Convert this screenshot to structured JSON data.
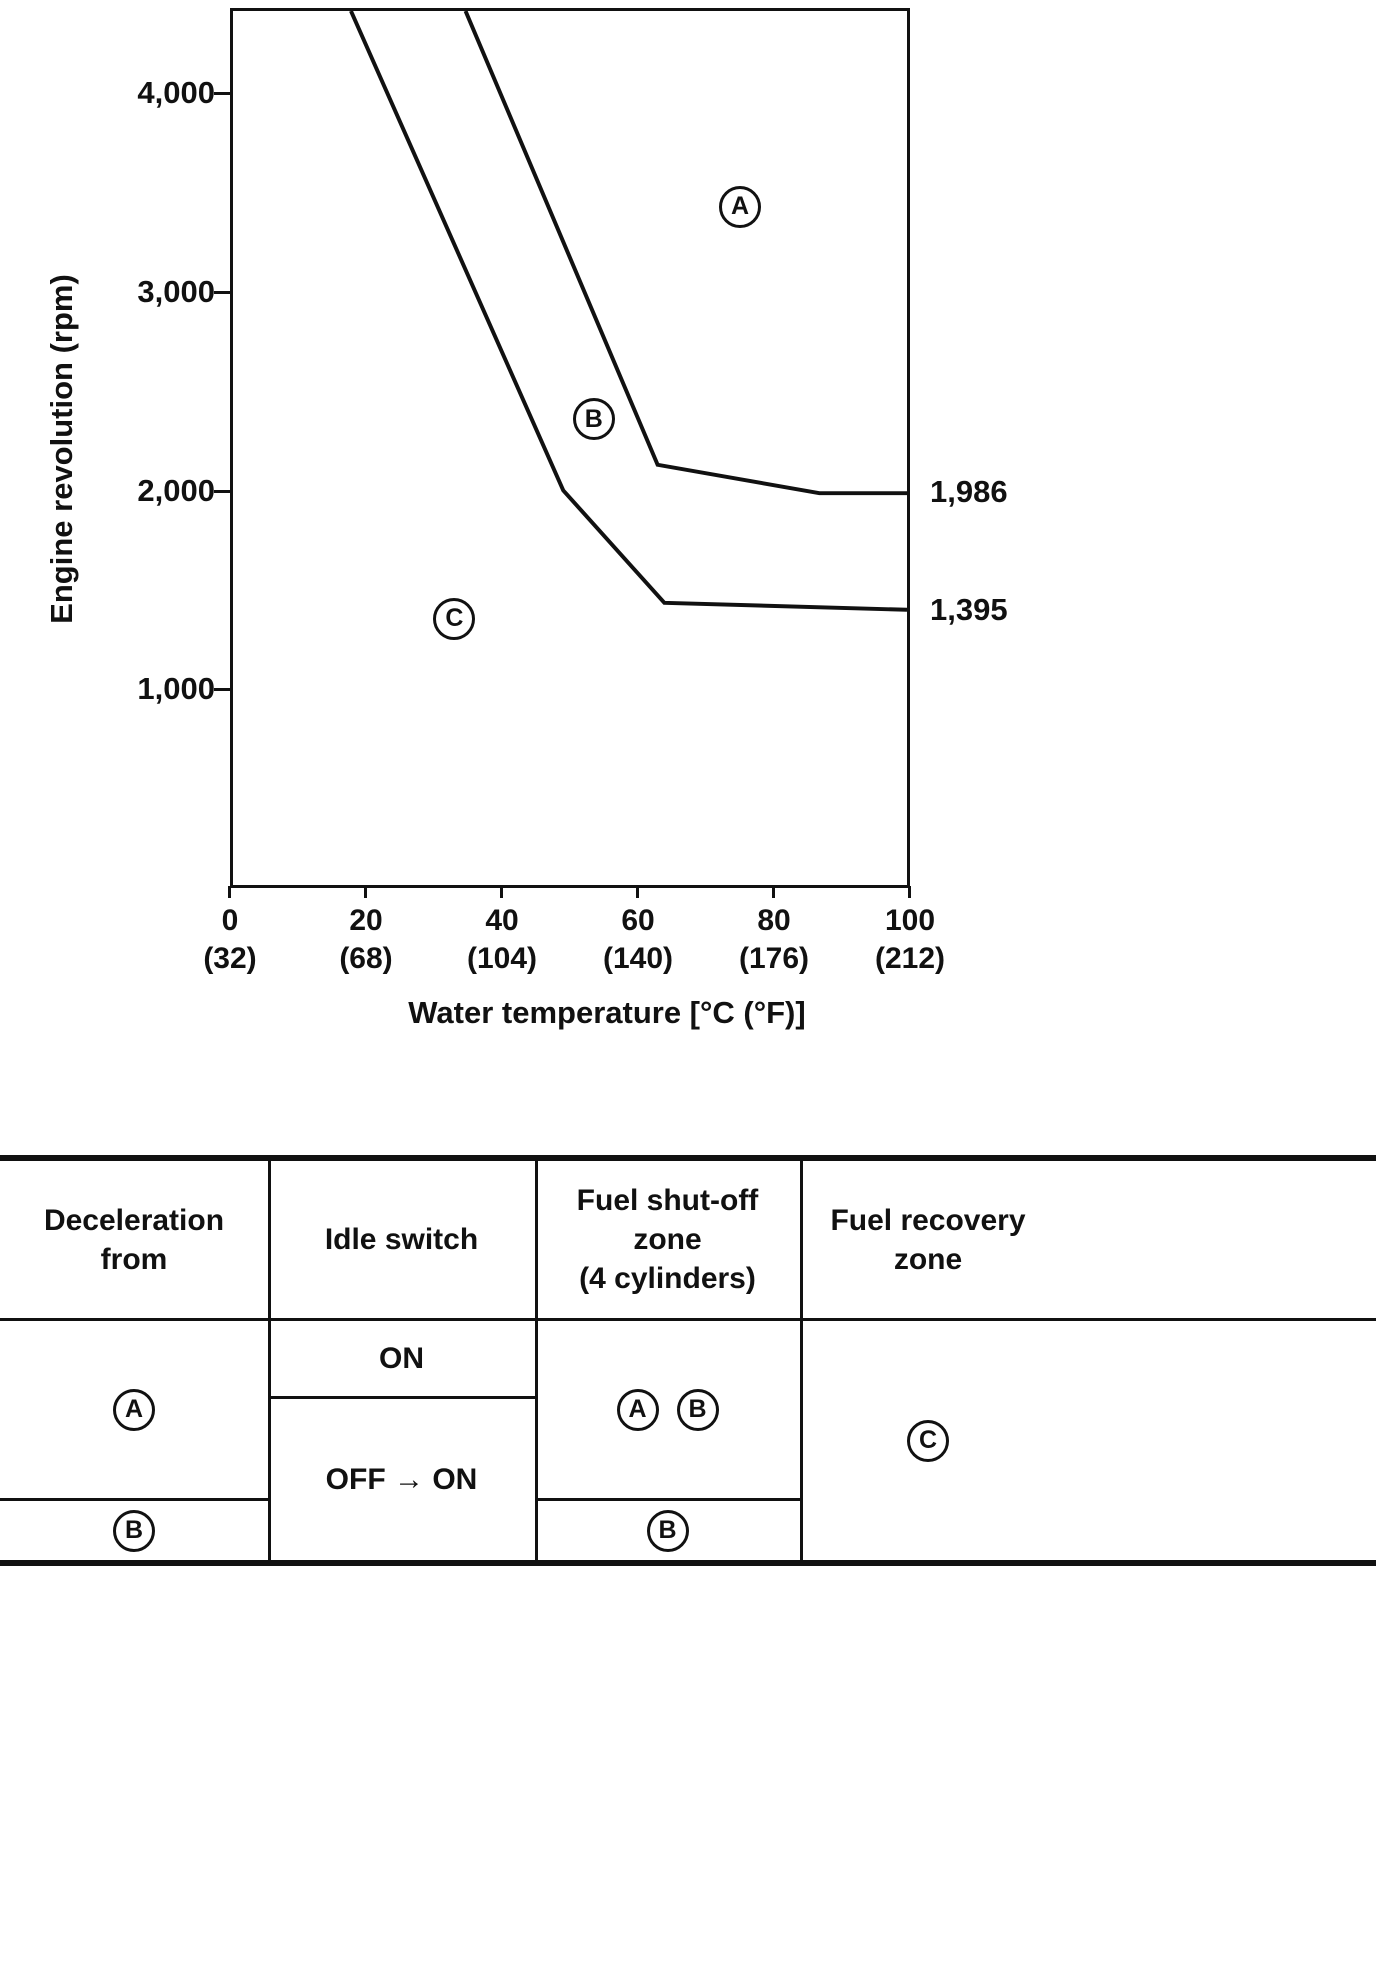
{
  "chart_data": {
    "type": "line",
    "title": "",
    "xlabel": "Water temperature [°C (°F)]",
    "ylabel": "Engine revolution (rpm)",
    "xlim": [
      0,
      100
    ],
    "ylim": [
      0,
      4430
    ],
    "grid": false,
    "legend": false,
    "x_ticks": [
      {
        "value": 0,
        "label_c": "0",
        "label_f": "(32)"
      },
      {
        "value": 20,
        "label_c": "20",
        "label_f": "(68)"
      },
      {
        "value": 40,
        "label_c": "40",
        "label_f": "(104)"
      },
      {
        "value": 60,
        "label_c": "60",
        "label_f": "(140)"
      },
      {
        "value": 80,
        "label_c": "80",
        "label_f": "(176)"
      },
      {
        "value": 100,
        "label_c": "100",
        "label_f": "(212)"
      }
    ],
    "y_ticks": [
      {
        "value": 1000,
        "label": "1,000"
      },
      {
        "value": 2000,
        "label": "2,000"
      },
      {
        "value": 3000,
        "label": "3,000"
      },
      {
        "value": 4000,
        "label": "4,000"
      }
    ],
    "series": [
      {
        "name": "fuel-shutoff-upper-boundary",
        "points": [
          [
            34.5,
            4430
          ],
          [
            63,
            2130
          ],
          [
            87,
            1986
          ],
          [
            100,
            1986
          ]
        ],
        "end_label": "1,986"
      },
      {
        "name": "fuel-recovery-lower-boundary",
        "points": [
          [
            17.5,
            4430
          ],
          [
            49,
            2000
          ],
          [
            64,
            1430
          ],
          [
            100,
            1395
          ]
        ],
        "end_label": "1,395"
      }
    ],
    "zones": [
      {
        "label": "A",
        "x": 75,
        "y": 3430
      },
      {
        "label": "B",
        "x": 53.5,
        "y": 2360
      },
      {
        "label": "C",
        "x": 33,
        "y": 1355
      }
    ]
  },
  "table": {
    "headers": [
      "Deceleration\nfrom",
      "Idle switch",
      "Fuel shut-off\nzone\n(4 cylinders)",
      "Fuel recovery\nzone"
    ],
    "rows": {
      "deceleration_a": "A",
      "deceleration_b": "B",
      "idle_switch_on": "ON",
      "idle_switch_off_on": "OFF → ON",
      "fuel_shutoff_a": "A",
      "fuel_shutoff_b": "B",
      "fuel_shutoff_b2": "B",
      "fuel_recovery_c": "C"
    }
  }
}
